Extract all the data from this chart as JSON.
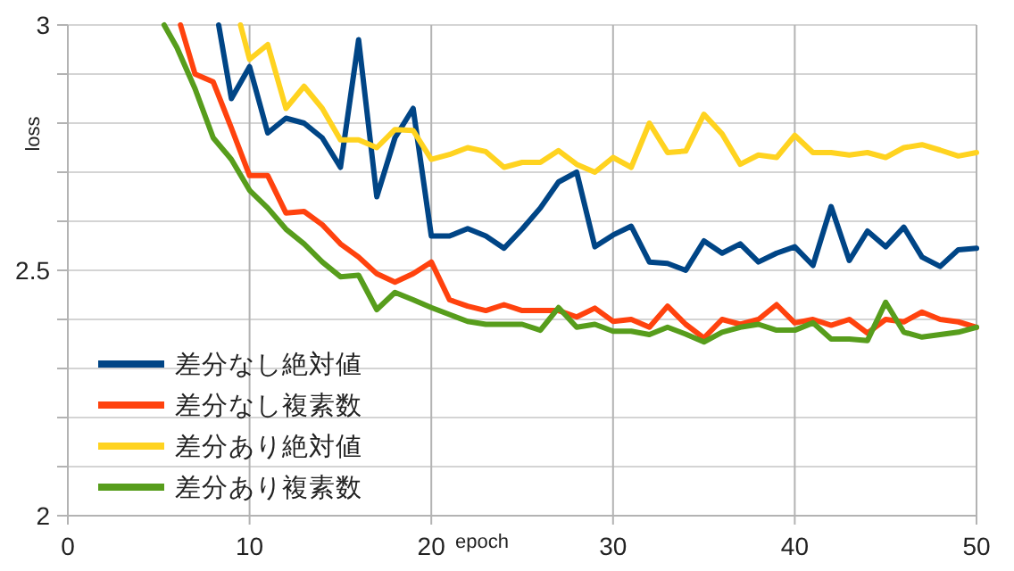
{
  "chart_data": {
    "type": "line",
    "xlabel": "epoch",
    "ylabel": "loss",
    "xlim": [
      0,
      50
    ],
    "ylim": [
      2,
      3
    ],
    "xticks": [
      0,
      10,
      20,
      30,
      40,
      50
    ],
    "yticks": [
      2,
      {
        "value": 2.1,
        "label": null
      },
      {
        "value": 2.2,
        "label": null
      },
      {
        "value": 2.3,
        "label": null
      },
      {
        "value": 2.4,
        "label": null
      },
      2.5,
      {
        "value": 2.6,
        "label": null
      },
      {
        "value": 2.7,
        "label": null
      },
      {
        "value": 2.8,
        "label": null
      },
      {
        "value": 2.9,
        "label": null
      },
      3
    ],
    "grid": true,
    "legend": "bottom left",
    "marker": "none",
    "line_style": "solid",
    "series": [
      {
        "name": "差分なし絶対値",
        "color": "#004586",
        "x": [
          8.3,
          9,
          10,
          11,
          12,
          13,
          14,
          15,
          16,
          17,
          18,
          19,
          20,
          21,
          22,
          23,
          24,
          25,
          26,
          27,
          28,
          29,
          30,
          31,
          32,
          33,
          34,
          35,
          36,
          37,
          38,
          39,
          40,
          41,
          42,
          43,
          44,
          45,
          46,
          47,
          48,
          49,
          50
        ],
        "values": [
          3,
          2.85,
          2.915,
          2.78,
          2.81,
          2.8,
          2.77,
          2.71,
          2.97,
          2.65,
          2.77,
          2.83,
          2.57,
          2.57,
          2.585,
          2.57,
          2.545,
          2.584,
          2.627,
          2.68,
          2.7,
          2.548,
          2.572,
          2.59,
          2.517,
          2.514,
          2.5,
          2.56,
          2.535,
          2.554,
          2.517,
          2.535,
          2.548,
          2.51,
          2.63,
          2.52,
          2.58,
          2.548,
          2.588,
          2.527,
          2.508,
          2.542,
          2.545
        ]
      },
      {
        "name": "差分なし複素数",
        "color": "#ff420e",
        "x": [
          6.2,
          7,
          8,
          9,
          10,
          11,
          12,
          13,
          14,
          15,
          16,
          17,
          18,
          19,
          20,
          21,
          22,
          23,
          24,
          25,
          26,
          27,
          28,
          29,
          30,
          31,
          32,
          33,
          34,
          35,
          36,
          37,
          38,
          39,
          40,
          41,
          42,
          43,
          44,
          45,
          46,
          47,
          48,
          49,
          50
        ],
        "values": [
          3,
          2.9,
          2.884,
          2.79,
          2.693,
          2.693,
          2.617,
          2.62,
          2.593,
          2.554,
          2.527,
          2.493,
          2.476,
          2.493,
          2.517,
          2.44,
          2.427,
          2.418,
          2.43,
          2.418,
          2.418,
          2.418,
          2.405,
          2.423,
          2.396,
          2.4,
          2.384,
          2.427,
          2.39,
          2.362,
          2.4,
          2.39,
          2.4,
          2.43,
          2.393,
          2.4,
          2.388,
          2.4,
          2.372,
          2.4,
          2.395,
          2.415,
          2.4,
          2.395,
          2.384
        ]
      },
      {
        "name": "差分あり絶対値",
        "color": "#ffd320",
        "x": [
          9.5,
          10,
          11,
          12,
          13,
          14,
          15,
          16,
          17,
          18,
          19,
          20,
          21,
          22,
          23,
          24,
          25,
          26,
          27,
          28,
          29,
          30,
          31,
          32,
          33,
          34,
          35,
          36,
          37,
          38,
          39,
          40,
          41,
          42,
          43,
          44,
          45,
          46,
          47,
          48,
          49,
          50
        ],
        "values": [
          3,
          2.93,
          2.96,
          2.83,
          2.875,
          2.83,
          2.766,
          2.766,
          2.75,
          2.787,
          2.785,
          2.726,
          2.736,
          2.75,
          2.742,
          2.71,
          2.72,
          2.72,
          2.744,
          2.716,
          2.7,
          2.73,
          2.71,
          2.8,
          2.74,
          2.743,
          2.818,
          2.778,
          2.716,
          2.735,
          2.73,
          2.775,
          2.74,
          2.74,
          2.735,
          2.74,
          2.73,
          2.75,
          2.756,
          2.745,
          2.733,
          2.74
        ]
      },
      {
        "name": "差分あり複素数",
        "color": "#579d1c",
        "x": [
          5.3,
          6,
          7,
          8,
          9,
          10,
          11,
          12,
          13,
          14,
          15,
          16,
          17,
          18,
          19,
          20,
          21,
          22,
          23,
          24,
          25,
          26,
          27,
          28,
          29,
          30,
          31,
          32,
          33,
          34,
          35,
          36,
          37,
          38,
          39,
          40,
          41,
          42,
          43,
          44,
          45,
          46,
          47,
          48,
          49,
          50
        ],
        "values": [
          3,
          2.954,
          2.87,
          2.77,
          2.726,
          2.663,
          2.627,
          2.584,
          2.554,
          2.517,
          2.487,
          2.49,
          2.42,
          2.455,
          2.44,
          2.424,
          2.41,
          2.396,
          2.39,
          2.39,
          2.39,
          2.378,
          2.424,
          2.384,
          2.39,
          2.376,
          2.376,
          2.369,
          2.384,
          2.37,
          2.354,
          2.374,
          2.384,
          2.39,
          2.378,
          2.378,
          2.393,
          2.36,
          2.36,
          2.357,
          2.435,
          2.374,
          2.364,
          2.369,
          2.374,
          2.384
        ]
      }
    ]
  }
}
